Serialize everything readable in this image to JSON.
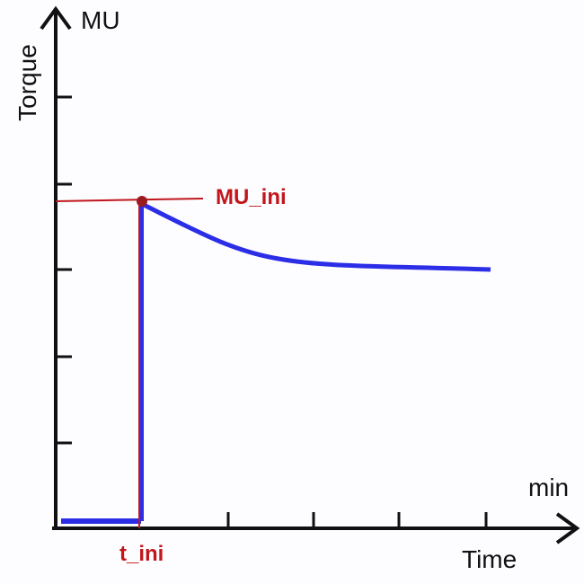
{
  "axes": {
    "y_unit": "MU",
    "y_label": "Torque",
    "x_unit": "min",
    "x_label": "Time"
  },
  "annotations": {
    "start_value": "MU_ini",
    "start_time": "t_ini"
  }
}
